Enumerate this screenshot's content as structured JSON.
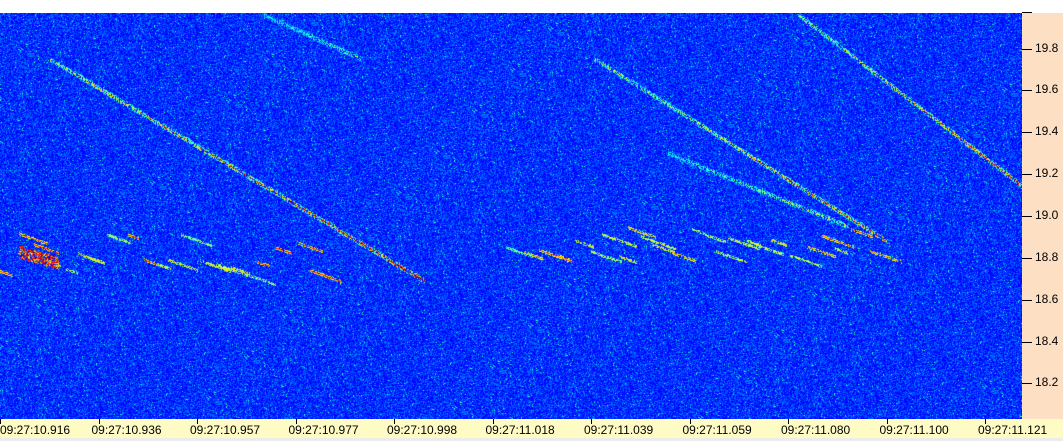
{
  "chart_data": {
    "type": "heatmap",
    "subtype": "spectrogram",
    "colormap": "jet",
    "background_color": "#1236c0",
    "title": "",
    "xlabel": "",
    "ylabel": "",
    "x_tick_labels": [
      "09:27:10.916",
      "09:27:10.936",
      "09:27:10.957",
      "09:27:10.977",
      "09:27:10.998",
      "09:27:11.018",
      "09:27:11.039",
      "09:27:11.059",
      "09:27:11.080",
      "09:27:11.100",
      "09:27:11.121"
    ],
    "y_tick_labels": [
      "19.8",
      "19.6",
      "19.4",
      "19.2",
      "19.0",
      "18.8",
      "18.6",
      "18.4",
      "18.2"
    ],
    "y_ticks": [
      19.8,
      19.6,
      19.4,
      19.2,
      19.0,
      18.8,
      18.6,
      18.4,
      18.2
    ],
    "ylim": [
      18.03,
      19.97
    ],
    "xlim_seconds": [
      10.916,
      11.126
    ],
    "y_axis_position": "right",
    "grid": false,
    "traces": [
      {
        "t_start": 10.926,
        "f_start": 19.75,
        "t_end": 11.003,
        "f_end": 18.69,
        "intensity": 0.75
      },
      {
        "t_start": 11.038,
        "f_start": 19.75,
        "t_end": 11.098,
        "f_end": 18.88,
        "intensity": 0.6
      },
      {
        "t_start": 11.053,
        "f_start": 19.3,
        "t_end": 11.09,
        "f_end": 18.95,
        "intensity": 0.4
      },
      {
        "t_start": 11.08,
        "f_start": 19.96,
        "t_end": 11.126,
        "f_end": 19.14,
        "intensity": 0.65
      },
      {
        "t_start": 10.97,
        "f_start": 19.96,
        "t_end": 10.99,
        "f_end": 19.75,
        "intensity": 0.3
      }
    ],
    "clusters": [
      {
        "t_start": 10.916,
        "t_end": 10.98,
        "f_low": 18.72,
        "f_high": 18.93,
        "intensity": 0.55
      },
      {
        "t_start": 11.02,
        "t_end": 11.098,
        "f_low": 18.8,
        "f_high": 18.95,
        "intensity": 0.5
      },
      {
        "t": 10.924,
        "f": 18.8,
        "intensity": 0.95
      }
    ]
  }
}
